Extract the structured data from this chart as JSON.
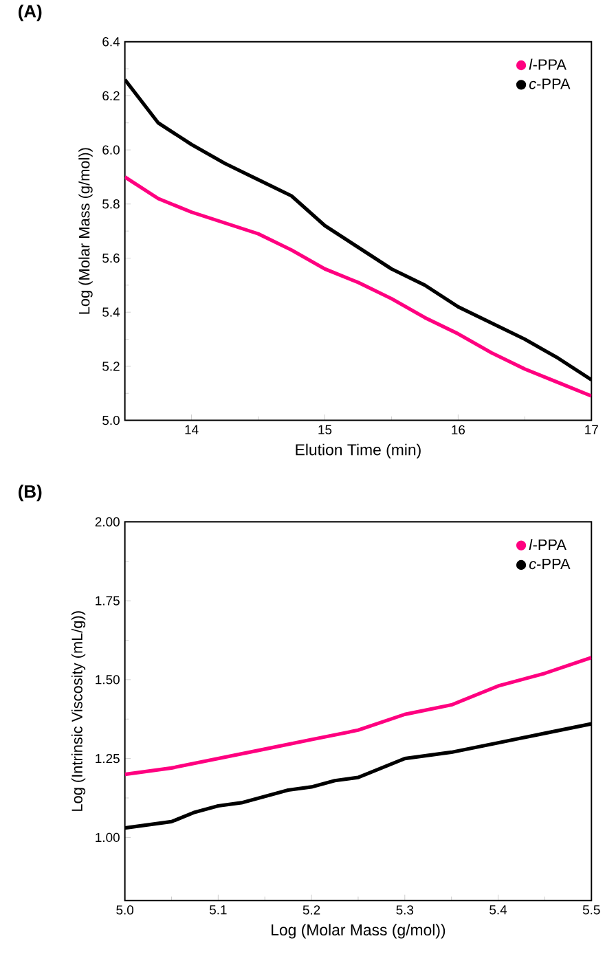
{
  "chart_data": [
    {
      "type": "line",
      "title": "(A)",
      "xlabel": "Elution Time (min)",
      "ylabel": "Log (Molar Mass (g/mol))",
      "xlim": [
        13.5,
        17
      ],
      "ylim": [
        5.0,
        6.4
      ],
      "xticks": [
        14,
        15,
        16,
        17
      ],
      "yticks": [
        {
          "value": 5.0,
          "label": "5.0"
        },
        {
          "value": 5.2,
          "label": "5.2"
        },
        {
          "value": 5.4,
          "label": "5.4"
        },
        {
          "value": 5.6,
          "label": "5.6"
        },
        {
          "value": 5.8,
          "label": "5.8"
        },
        {
          "value": 6.0,
          "label": "6.0"
        },
        {
          "value": 6.2,
          "label": "6.2"
        },
        {
          "value": 6.4,
          "label": "6.4"
        }
      ],
      "legend": "top right",
      "series": [
        {
          "name": "*l*-PPA",
          "color": "#ff0080",
          "x": [
            13.5,
            13.75,
            14.0,
            14.25,
            14.5,
            14.75,
            15.0,
            15.25,
            15.5,
            15.75,
            16.0,
            16.25,
            16.5,
            16.75,
            17.0
          ],
          "values": [
            5.9,
            5.82,
            5.77,
            5.73,
            5.69,
            5.63,
            5.56,
            5.51,
            5.45,
            5.38,
            5.32,
            5.25,
            5.19,
            5.14,
            5.09
          ]
        },
        {
          "name": "*c*-PPA",
          "color": "#000000",
          "x": [
            13.5,
            13.75,
            14.0,
            14.25,
            14.5,
            14.75,
            15.0,
            15.25,
            15.5,
            15.75,
            16.0,
            16.25,
            16.5,
            16.75,
            17.0
          ],
          "values": [
            6.26,
            6.1,
            6.02,
            5.95,
            5.89,
            5.83,
            5.72,
            5.64,
            5.56,
            5.5,
            5.42,
            5.36,
            5.3,
            5.23,
            5.15
          ]
        }
      ]
    },
    {
      "type": "line",
      "title": "(B)",
      "xlabel": "Log (Molar Mass (g/mol))",
      "ylabel": "Log (Intrinsic Viscosity (mL/g))",
      "xlim": [
        5.0,
        5.5
      ],
      "ylim": [
        0.8,
        2.0
      ],
      "xticks": [
        {
          "value": 5.0,
          "label": "5.0"
        },
        5.1,
        5.2,
        5.3,
        5.4,
        5.5
      ],
      "yticks": [
        {
          "value": 1.0,
          "label": "1.00"
        },
        1.25,
        {
          "value": 1.5,
          "label": "1.50"
        },
        1.75,
        {
          "value": 2.0,
          "label": "2.00"
        }
      ],
      "legend": "top right",
      "series": [
        {
          "name": "*l*-PPA",
          "color": "#ff0080",
          "x": [
            5.0,
            5.05,
            5.1,
            5.15,
            5.2,
            5.25,
            5.3,
            5.35,
            5.4,
            5.45,
            5.5
          ],
          "values": [
            1.2,
            1.22,
            1.25,
            1.28,
            1.31,
            1.34,
            1.39,
            1.42,
            1.48,
            1.52,
            1.57
          ]
        },
        {
          "name": "*c*-PPA",
          "color": "#000000",
          "x": [
            5.0,
            5.025,
            5.05,
            5.075,
            5.1,
            5.125,
            5.15,
            5.175,
            5.2,
            5.225,
            5.25,
            5.275,
            5.3,
            5.35,
            5.4,
            5.45,
            5.5
          ],
          "values": [
            1.03,
            1.04,
            1.05,
            1.08,
            1.1,
            1.11,
            1.13,
            1.15,
            1.16,
            1.18,
            1.19,
            1.22,
            1.25,
            1.27,
            1.3,
            1.33,
            1.36
          ]
        }
      ]
    }
  ]
}
